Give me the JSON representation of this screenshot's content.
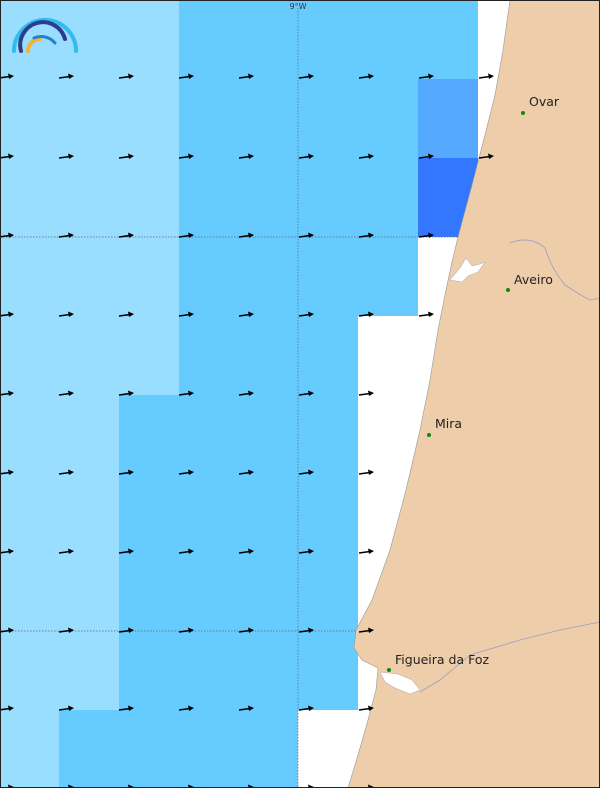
{
  "map": {
    "graticule_label": "9°W",
    "colors": {
      "light": "#99ddff",
      "medium": "#66ccff",
      "strong": "#55aaff",
      "strongest": "#3377ff",
      "land": "#edcdaa",
      "river": "#9aa0c0",
      "city_dot": "#118811"
    },
    "arrow_direction": "east",
    "cities": [
      {
        "name": "Ovar"
      },
      {
        "name": "Aveiro"
      },
      {
        "name": "Mira"
      },
      {
        "name": "Figueira da Foz"
      }
    ]
  },
  "logo": {
    "icon": "wave-arcs-logo"
  }
}
